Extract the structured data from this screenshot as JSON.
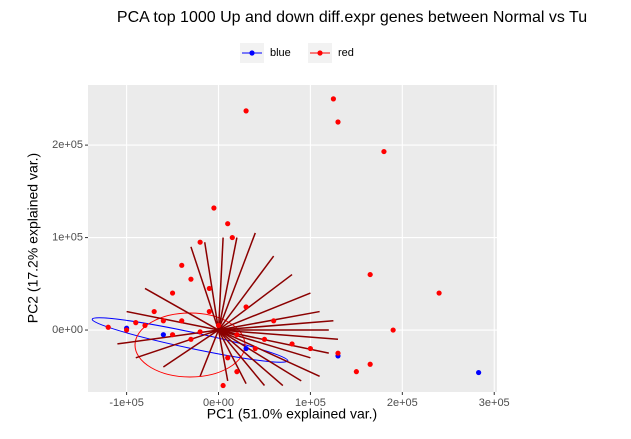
{
  "chart_data": {
    "type": "scatter",
    "title": "PCA top 1000 Up and down diff.expr genes between Normal vs Tu",
    "x_label": "PC1 (51.0% explained var.)",
    "y_label": "PC2 (17.2% explained var.)",
    "xlim": [
      -142000,
      303000
    ],
    "ylim": [
      -67000,
      265000
    ],
    "xticks": [
      {
        "value": -100000,
        "label": "-1e+05"
      },
      {
        "value": 0,
        "label": "0e+00"
      },
      {
        "value": 100000,
        "label": "1e+05"
      },
      {
        "value": 200000,
        "label": "2e+05"
      },
      {
        "value": 300000,
        "label": "3e+05"
      }
    ],
    "yticks": [
      {
        "value": 0,
        "label": "0e+00"
      },
      {
        "value": 100000,
        "label": "1e+05"
      },
      {
        "value": 200000,
        "label": "2e+05"
      }
    ],
    "grid": true,
    "legend": "top",
    "series": [
      {
        "name": "blue",
        "color": "#0000ff",
        "x": [
          283000,
          130000,
          -100000,
          -60000,
          30000
        ],
        "y": [
          -46000,
          -28000,
          2000,
          -5000,
          -20000
        ]
      },
      {
        "name": "red",
        "color": "#ff0000",
        "x": [
          30000,
          125000,
          130000,
          180000,
          165000,
          240000,
          190000,
          -5000,
          10000,
          15000,
          -20000,
          -40000,
          -30000,
          -50000,
          -10000,
          -60000,
          -80000,
          -100000,
          -40000,
          -20000,
          0,
          20000,
          50000,
          80000,
          100000,
          130000,
          150000,
          165000,
          20000,
          10000,
          -70000,
          -90000,
          -120000,
          -10000,
          30000,
          60000,
          40000,
          5000,
          -30000,
          -50000
        ],
        "y": [
          237000,
          250000,
          225000,
          193000,
          60000,
          40000,
          0,
          132000,
          115000,
          100000,
          95000,
          70000,
          55000,
          40000,
          45000,
          10000,
          5000,
          0,
          10000,
          -2000,
          5000,
          -5000,
          -10000,
          -15000,
          -20000,
          -25000,
          -45000,
          -37000,
          -45000,
          -30000,
          20000,
          8000,
          3000,
          20000,
          25000,
          10000,
          -20000,
          -60000,
          -10000,
          -5000
        ]
      }
    ],
    "loadings": {
      "color": "#8b0000",
      "x": [
        100000,
        120000,
        110000,
        90000,
        70000,
        50000,
        30000,
        10000,
        -20000,
        -60000,
        -90000,
        -110000,
        -100000,
        -80000,
        -30000,
        -15000,
        5000,
        20000,
        40000,
        60000,
        80000,
        100000,
        110000,
        120000,
        125000,
        130000
      ],
      "y": [
        -30000,
        -25000,
        -50000,
        -55000,
        -60000,
        -60000,
        -58000,
        -55000,
        -50000,
        -40000,
        -30000,
        -15000,
        20000,
        45000,
        90000,
        95000,
        100000,
        100000,
        105000,
        80000,
        60000,
        40000,
        20000,
        0,
        10000,
        -10000
      ]
    }
  }
}
